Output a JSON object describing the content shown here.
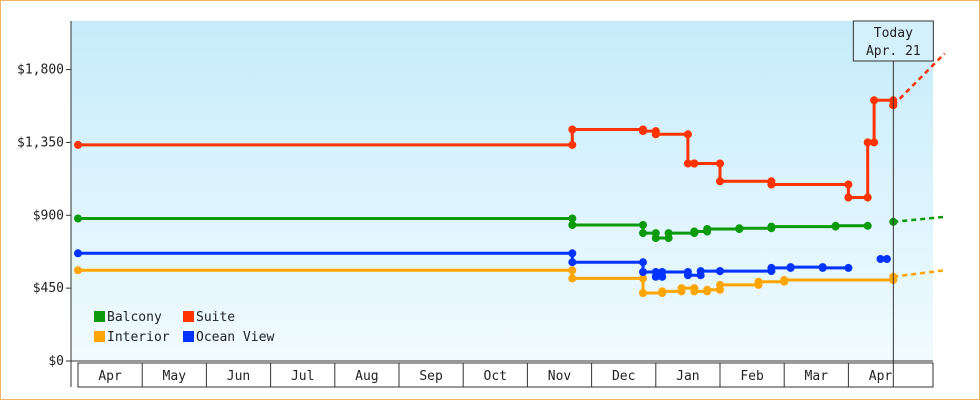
{
  "chart_data": {
    "type": "line",
    "y_ticks": [
      "$0",
      "$450",
      "$900",
      "$1,350",
      "$1,800"
    ],
    "y_tick_values": [
      0,
      450,
      900,
      1350,
      1800
    ],
    "ylim": [
      0,
      2100
    ],
    "x_months": [
      "Apr",
      "May",
      "Jun",
      "Jul",
      "Aug",
      "Sep",
      "Oct",
      "Nov",
      "Dec",
      "Jan",
      "Feb",
      "Mar",
      "Apr"
    ],
    "today_label": "Today",
    "today_date": "Apr. 21",
    "grid": false,
    "legend_position": "bottom-left",
    "colors": {
      "Balcony": "#0a9a0a",
      "Suite": "#ff3300",
      "Interior": "#ffa500",
      "Ocean View": "#0033ff"
    },
    "series": [
      {
        "name": "Balcony",
        "points": [
          [
            0.0,
            880
          ],
          [
            7.7,
            880
          ],
          [
            7.7,
            840
          ],
          [
            8.8,
            840
          ],
          [
            8.8,
            790
          ],
          [
            9.0,
            790
          ],
          [
            9.0,
            760
          ],
          [
            9.2,
            760
          ],
          [
            9.2,
            790
          ],
          [
            9.6,
            790
          ],
          [
            9.6,
            800
          ],
          [
            9.8,
            800
          ],
          [
            9.8,
            815
          ],
          [
            10.3,
            815
          ],
          [
            10.3,
            820
          ],
          [
            10.8,
            820
          ],
          [
            10.8,
            830
          ],
          [
            11.8,
            830
          ],
          [
            11.8,
            835
          ],
          [
            12.3,
            835
          ]
        ],
        "future_points": [
          [
            12.7,
            860
          ],
          [
            13.5,
            890
          ]
        ]
      },
      {
        "name": "Suite",
        "points": [
          [
            0.0,
            1335
          ],
          [
            7.7,
            1335
          ],
          [
            7.7,
            1430
          ],
          [
            8.8,
            1430
          ],
          [
            8.8,
            1420
          ],
          [
            9.0,
            1420
          ],
          [
            9.0,
            1400
          ],
          [
            9.5,
            1400
          ],
          [
            9.5,
            1220
          ],
          [
            9.6,
            1220
          ],
          [
            9.6,
            1220
          ],
          [
            10.0,
            1220
          ],
          [
            10.0,
            1110
          ],
          [
            10.8,
            1110
          ],
          [
            10.8,
            1090
          ],
          [
            12.0,
            1090
          ],
          [
            12.0,
            1010
          ],
          [
            12.3,
            1010
          ],
          [
            12.3,
            1350
          ],
          [
            12.4,
            1350
          ],
          [
            12.4,
            1610
          ],
          [
            12.7,
            1610
          ],
          [
            12.7,
            1580
          ]
        ],
        "future_points": [
          [
            12.7,
            1580
          ],
          [
            13.5,
            1900
          ]
        ]
      },
      {
        "name": "Interior",
        "points": [
          [
            0.0,
            560
          ],
          [
            7.7,
            560
          ],
          [
            7.7,
            510
          ],
          [
            8.8,
            510
          ],
          [
            8.8,
            420
          ],
          [
            9.1,
            420
          ],
          [
            9.1,
            430
          ],
          [
            9.4,
            430
          ],
          [
            9.4,
            450
          ],
          [
            9.6,
            450
          ],
          [
            9.6,
            430
          ],
          [
            9.8,
            430
          ],
          [
            9.8,
            440
          ],
          [
            10.0,
            440
          ],
          [
            10.0,
            470
          ],
          [
            10.6,
            470
          ],
          [
            10.6,
            490
          ],
          [
            11.0,
            490
          ],
          [
            11.0,
            500
          ],
          [
            12.7,
            500
          ]
        ],
        "future_points": [
          [
            12.7,
            520
          ],
          [
            13.5,
            560
          ]
        ]
      },
      {
        "name": "Ocean View",
        "points": [
          [
            0.0,
            665
          ],
          [
            7.7,
            665
          ],
          [
            7.7,
            610
          ],
          [
            8.8,
            610
          ],
          [
            8.8,
            550
          ],
          [
            9.0,
            550
          ],
          [
            9.0,
            520
          ],
          [
            9.1,
            520
          ],
          [
            9.1,
            550
          ],
          [
            9.5,
            550
          ],
          [
            9.5,
            530
          ],
          [
            9.7,
            530
          ],
          [
            9.7,
            555
          ],
          [
            10.0,
            555
          ],
          [
            10.0,
            555
          ],
          [
            10.8,
            555
          ],
          [
            10.8,
            575
          ],
          [
            11.1,
            575
          ],
          [
            11.1,
            580
          ],
          [
            11.6,
            580
          ],
          [
            11.6,
            575
          ],
          [
            12.0,
            575
          ]
        ],
        "extra_points": [
          [
            12.5,
            630
          ],
          [
            12.6,
            630
          ]
        ]
      }
    ]
  }
}
